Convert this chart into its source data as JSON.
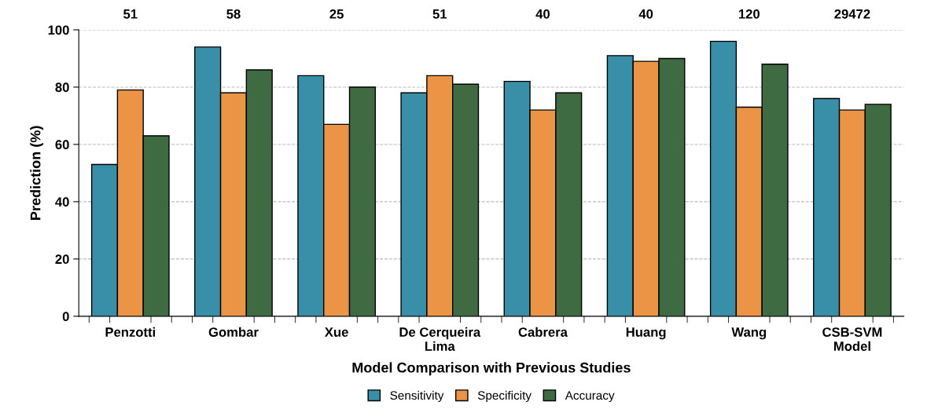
{
  "chart_data": {
    "type": "bar",
    "xlabel": "Model Comparison with Previous Studies",
    "ylabel": "Prediction (%)",
    "categories": [
      "Penzotti",
      "Gombar",
      "Xue",
      "De Cerqueira\nLima",
      "Cabrera",
      "Huang",
      "Wang",
      "CSB-SVM\nModel"
    ],
    "series": [
      {
        "name": "Sensitivity",
        "color": "#3a8fa8",
        "values": [
          53,
          94,
          84,
          78,
          82,
          91,
          96,
          76
        ]
      },
      {
        "name": "Specificity",
        "color": "#ec9446",
        "values": [
          79,
          78,
          67,
          84,
          72,
          89,
          73,
          72
        ]
      },
      {
        "name": "Accuracy",
        "color": "#3e6b42",
        "values": [
          63,
          86,
          80,
          81,
          78,
          90,
          88,
          74
        ]
      }
    ],
    "annotations": [
      "51",
      "58",
      "25",
      "51",
      "40",
      "40",
      "120",
      "29472"
    ],
    "ylim": [
      0,
      100
    ],
    "yticks": [
      0,
      20,
      40,
      60,
      80,
      100
    ],
    "grid": "y",
    "legend": "bottom"
  }
}
